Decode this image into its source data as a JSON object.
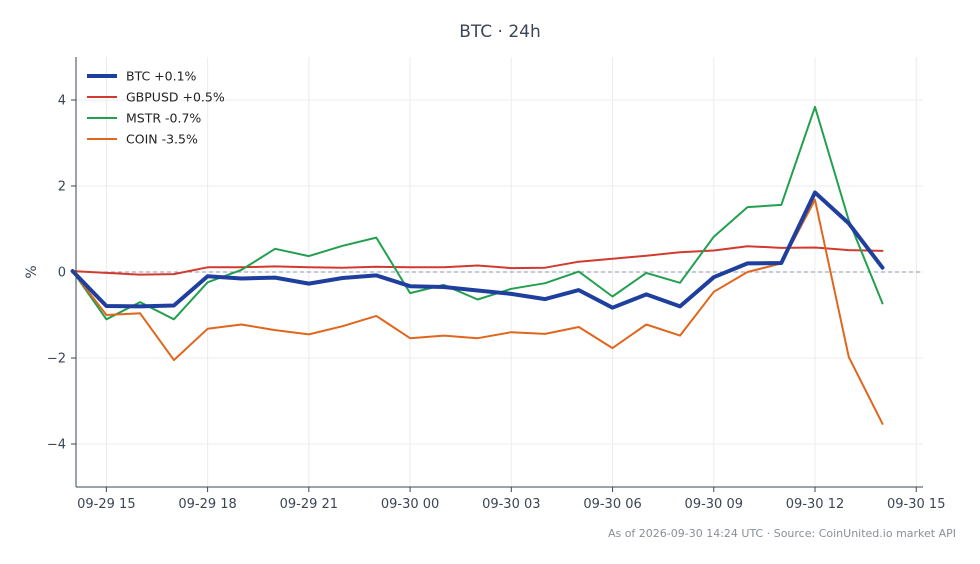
{
  "chart_data": {
    "type": "line",
    "title": "BTC · 24h",
    "ylabel": "%",
    "xlabel": "",
    "x_ticks": [
      "09-29 15",
      "09-29 18",
      "09-29 21",
      "09-30 00",
      "09-30 03",
      "09-30 06",
      "09-30 09",
      "09-30 12",
      "09-30 15"
    ],
    "y_ticks": [
      "4",
      "2",
      "0",
      "−2",
      "−4"
    ],
    "ylim": [
      -5,
      5
    ],
    "xlim": [
      "2026-09-29 14:06",
      "2026-09-30 15:12"
    ],
    "grid": true,
    "legend_position": "top-left",
    "x": [
      "2026-09-29 14:00",
      "2026-09-29 15:00",
      "2026-09-29 16:00",
      "2026-09-29 17:00",
      "2026-09-29 18:00",
      "2026-09-29 19:00",
      "2026-09-29 20:00",
      "2026-09-29 21:00",
      "2026-09-29 22:00",
      "2026-09-29 23:00",
      "2026-09-30 00:00",
      "2026-09-30 01:00",
      "2026-09-30 02:00",
      "2026-09-30 03:00",
      "2026-09-30 04:00",
      "2026-09-30 05:00",
      "2026-09-30 06:00",
      "2026-09-30 07:00",
      "2026-09-30 08:00",
      "2026-09-30 09:00",
      "2026-09-30 10:00",
      "2026-09-30 11:00",
      "2026-09-30 12:00",
      "2026-09-30 13:00",
      "2026-09-30 14:00"
    ],
    "series": [
      {
        "name": "BTC +0.1%",
        "color": "#1f3f9e",
        "values": [
          0.02,
          -0.79,
          -0.8,
          -0.78,
          -0.1,
          -0.15,
          -0.13,
          -0.27,
          -0.14,
          -0.08,
          -0.33,
          -0.35,
          -0.43,
          -0.51,
          -0.63,
          -0.42,
          -0.83,
          -0.52,
          -0.8,
          -0.12,
          0.2,
          0.21,
          1.85,
          1.13,
          0.1
        ]
      },
      {
        "name": "GBPUSD +0.5%",
        "color": "#d13a2f",
        "values": [
          0.02,
          -0.02,
          -0.06,
          -0.05,
          0.11,
          0.11,
          0.13,
          0.11,
          0.1,
          0.12,
          0.11,
          0.11,
          0.15,
          0.09,
          0.1,
          0.24,
          0.31,
          0.38,
          0.46,
          0.5,
          0.6,
          0.56,
          0.57,
          0.51,
          0.49
        ]
      },
      {
        "name": "MSTR -0.7%",
        "color": "#22a04f",
        "values": [
          0.02,
          -1.1,
          -0.7,
          -1.1,
          -0.24,
          0.05,
          0.54,
          0.37,
          0.61,
          0.8,
          -0.49,
          -0.3,
          -0.64,
          -0.39,
          -0.26,
          0.01,
          -0.57,
          -0.02,
          -0.25,
          0.82,
          1.51,
          1.56,
          3.84,
          1.2,
          -0.73
        ]
      },
      {
        "name": "COIN -3.5%",
        "color": "#e0661d",
        "values": [
          0.02,
          -1.0,
          -0.96,
          -2.05,
          -1.32,
          -1.22,
          -1.35,
          -1.45,
          -1.26,
          -1.02,
          -1.54,
          -1.48,
          -1.54,
          -1.4,
          -1.44,
          -1.28,
          -1.77,
          -1.22,
          -1.48,
          -0.46,
          0.0,
          0.2,
          1.68,
          -1.98,
          -3.53
        ]
      }
    ],
    "reference_line": {
      "value": 0,
      "style": "dashed",
      "color": "#8a9ab5"
    },
    "footer": "As of 2026-09-30 14:24 UTC · Source: CoinUnited.io market API"
  }
}
